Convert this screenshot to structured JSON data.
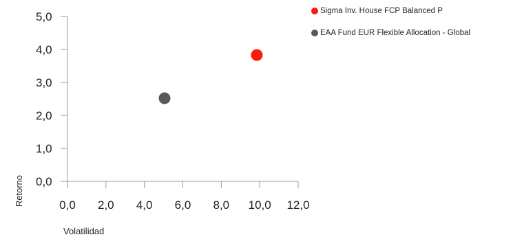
{
  "chart_data": {
    "type": "scatter",
    "xlabel": "Volatilidad",
    "ylabel": "Retorno",
    "xlim": [
      0,
      12
    ],
    "ylim": [
      0,
      5
    ],
    "xticks": [
      "0,0",
      "2,0",
      "4,0",
      "6,0",
      "8,0",
      "10,0",
      "12,0"
    ],
    "yticks": [
      "0,0",
      "1,0",
      "2,0",
      "3,0",
      "4,0",
      "5,0"
    ],
    "grid": false,
    "legend_position": "top-right",
    "series": [
      {
        "name": "Sigma Inv. House FCP Balanced P",
        "color": "#ff1a0a",
        "x": 9.85,
        "y": 3.83
      },
      {
        "name": "EAA Fund EUR Flexible Allocation - Global",
        "color": "#595959",
        "x": 5.05,
        "y": 2.52
      }
    ]
  }
}
